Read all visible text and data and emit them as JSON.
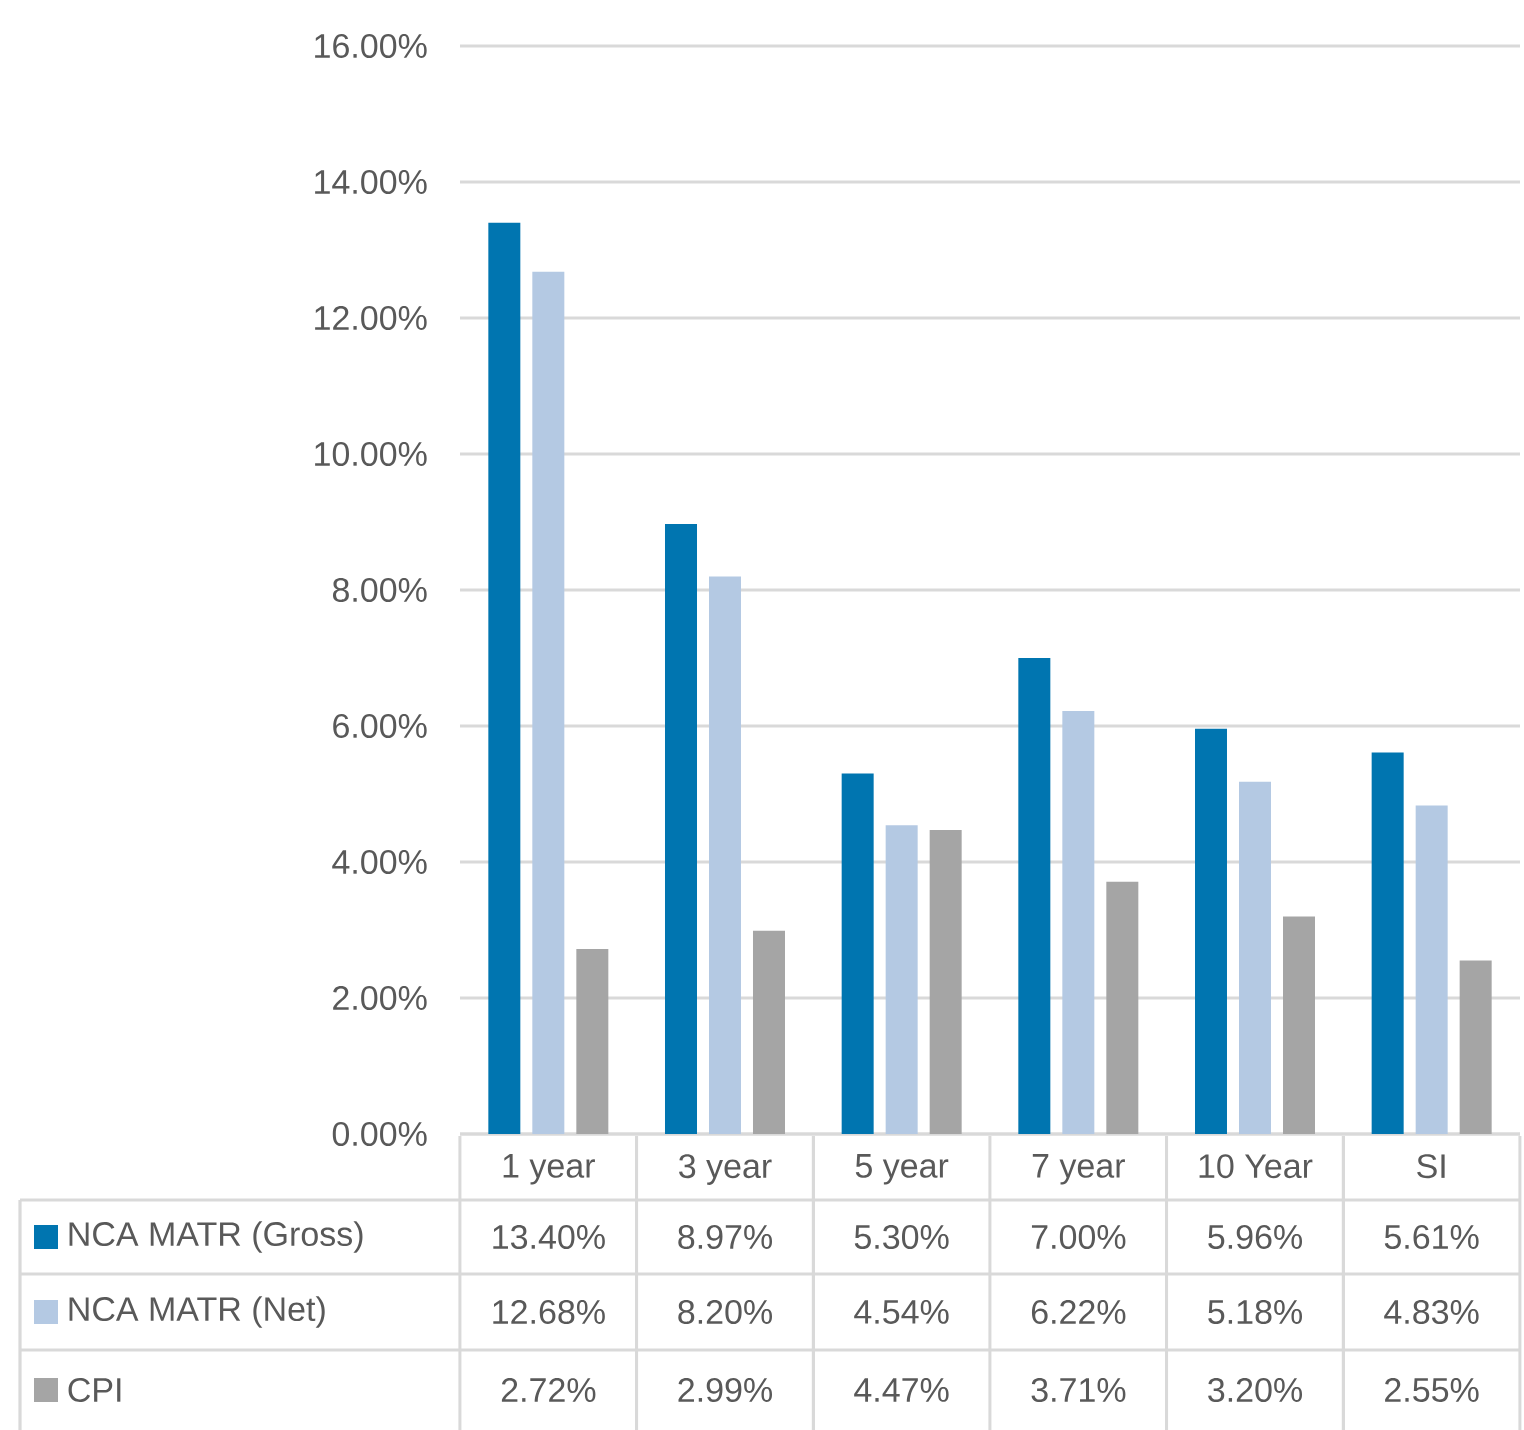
{
  "chart_data": {
    "type": "bar",
    "categories": [
      "1 year",
      "3 year",
      "5 year",
      "7 year",
      "10 Year",
      "SI"
    ],
    "series": [
      {
        "name": "NCA MATR (Gross)",
        "color": "#0075b0",
        "values": [
          13.4,
          8.97,
          5.3,
          7.0,
          5.96,
          5.61
        ],
        "value_labels": [
          "13.40%",
          "8.97%",
          "5.30%",
          "7.00%",
          "5.96%",
          "5.61%"
        ]
      },
      {
        "name": "NCA MATR (Net)",
        "color": "#b4c9e3",
        "values": [
          12.68,
          8.2,
          4.54,
          6.22,
          5.18,
          4.83
        ],
        "value_labels": [
          "12.68%",
          "8.20%",
          "4.54%",
          "6.22%",
          "5.18%",
          "4.83%"
        ]
      },
      {
        "name": "CPI",
        "color": "#a5a5a5",
        "values": [
          2.72,
          2.99,
          4.47,
          3.71,
          3.2,
          2.55
        ],
        "value_labels": [
          "2.72%",
          "2.99%",
          "4.47%",
          "3.71%",
          "3.20%",
          "2.55%"
        ]
      }
    ],
    "ylim": [
      0,
      16
    ],
    "yticks": [
      {
        "value": 0,
        "label": "0.00%"
      },
      {
        "value": 2,
        "label": "2.00%"
      },
      {
        "value": 4,
        "label": "4.00%"
      },
      {
        "value": 6,
        "label": "6.00%"
      },
      {
        "value": 8,
        "label": "8.00%"
      },
      {
        "value": 10,
        "label": "10.00%"
      },
      {
        "value": 12,
        "label": "12.00%"
      },
      {
        "value": 14,
        "label": "14.00%"
      },
      {
        "value": 16,
        "label": "16.00%"
      }
    ],
    "grid": "y",
    "legend": "bottom"
  }
}
